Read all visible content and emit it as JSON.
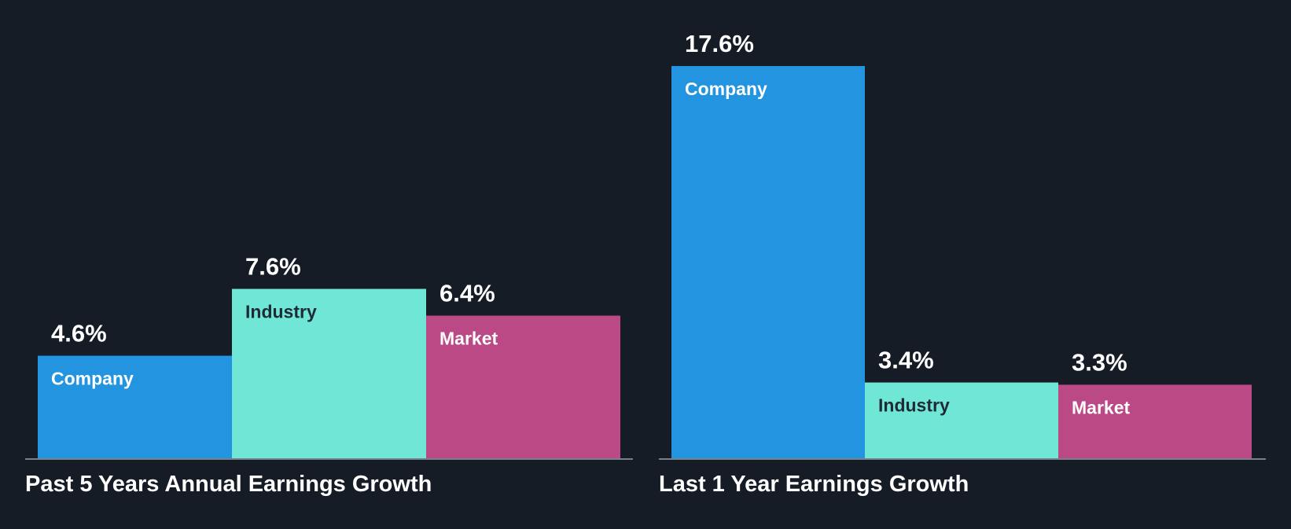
{
  "colors": {
    "background": "#161c25",
    "company": "#2394df",
    "industry": "#6fe6d6",
    "market": "#bb4985",
    "axis": "#7a8088",
    "value_text": "#ffffff",
    "label_on_light": "#1e2a35",
    "label_on_dark": "#ffffff",
    "title_text": "#ffffff"
  },
  "chart_data": [
    {
      "type": "bar",
      "title": "Past 5 Years Annual Earnings Growth",
      "categories": [
        "Company",
        "Industry",
        "Market"
      ],
      "values": [
        4.6,
        7.6,
        6.4
      ],
      "value_labels": [
        "4.6%",
        "7.6%",
        "6.4%"
      ],
      "unit": "%",
      "ylim": [
        0,
        17.6
      ],
      "grid": false,
      "legend": "none"
    },
    {
      "type": "bar",
      "title": "Last 1 Year Earnings Growth",
      "categories": [
        "Company",
        "Industry",
        "Market"
      ],
      "values": [
        17.6,
        3.4,
        3.3
      ],
      "value_labels": [
        "17.6%",
        "3.4%",
        "3.3%"
      ],
      "unit": "%",
      "ylim": [
        0,
        17.6
      ],
      "grid": false,
      "legend": "none"
    }
  ]
}
